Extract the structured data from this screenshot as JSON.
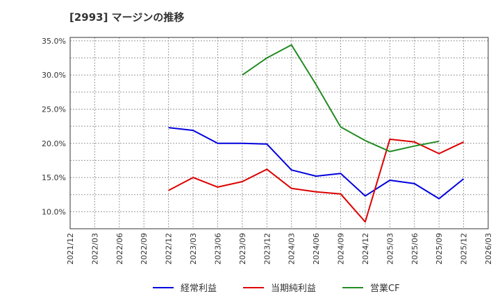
{
  "chart_data": {
    "type": "line",
    "title": "[2993]  マージンの推移",
    "xlabel": "",
    "ylabel": "",
    "grid": true,
    "legend_position": "bottom-center",
    "y_axis": {
      "min": 7.5,
      "max": 35.5,
      "ticks": [
        10.0,
        15.0,
        20.0,
        25.0,
        30.0,
        35.0
      ],
      "tick_labels": [
        "10.0%",
        "15.0%",
        "20.0%",
        "25.0%",
        "30.0%",
        "35.0%"
      ]
    },
    "x_axis": {
      "min": 0,
      "max": 17,
      "tick_labels": [
        "2021/12",
        "2022/03",
        "2022/06",
        "2022/09",
        "2022/12",
        "2023/03",
        "2023/06",
        "2023/09",
        "2023/12",
        "2024/03",
        "2024/06",
        "2024/09",
        "2024/12",
        "2025/03",
        "2025/06",
        "2025/09",
        "2025/12",
        "2026/03"
      ]
    },
    "series": [
      {
        "name": "経常利益",
        "color": "#0000dd",
        "x": [
          4,
          5,
          6,
          7,
          8,
          9,
          10,
          11,
          12,
          13,
          14,
          15,
          16
        ],
        "values": [
          22.3,
          21.9,
          20.0,
          20.0,
          19.9,
          16.1,
          15.2,
          15.6,
          12.3,
          14.6,
          14.1,
          11.9,
          14.8
        ]
      },
      {
        "name": "当期純利益",
        "color": "#dd0000",
        "x": [
          4,
          5,
          6,
          7,
          8,
          9,
          10,
          11,
          12,
          13,
          14,
          15,
          16
        ],
        "values": [
          13.1,
          15.0,
          13.6,
          14.4,
          16.2,
          13.4,
          12.9,
          12.6,
          8.5,
          20.6,
          20.2,
          18.5,
          20.2
        ]
      },
      {
        "name": "営業CF",
        "color": "#228b22",
        "x": [
          7,
          8,
          9,
          10,
          11,
          12,
          13,
          14,
          15
        ],
        "values": [
          30.0,
          32.5,
          34.4,
          28.6,
          22.4,
          20.4,
          18.8,
          19.6,
          20.3
        ]
      }
    ]
  }
}
